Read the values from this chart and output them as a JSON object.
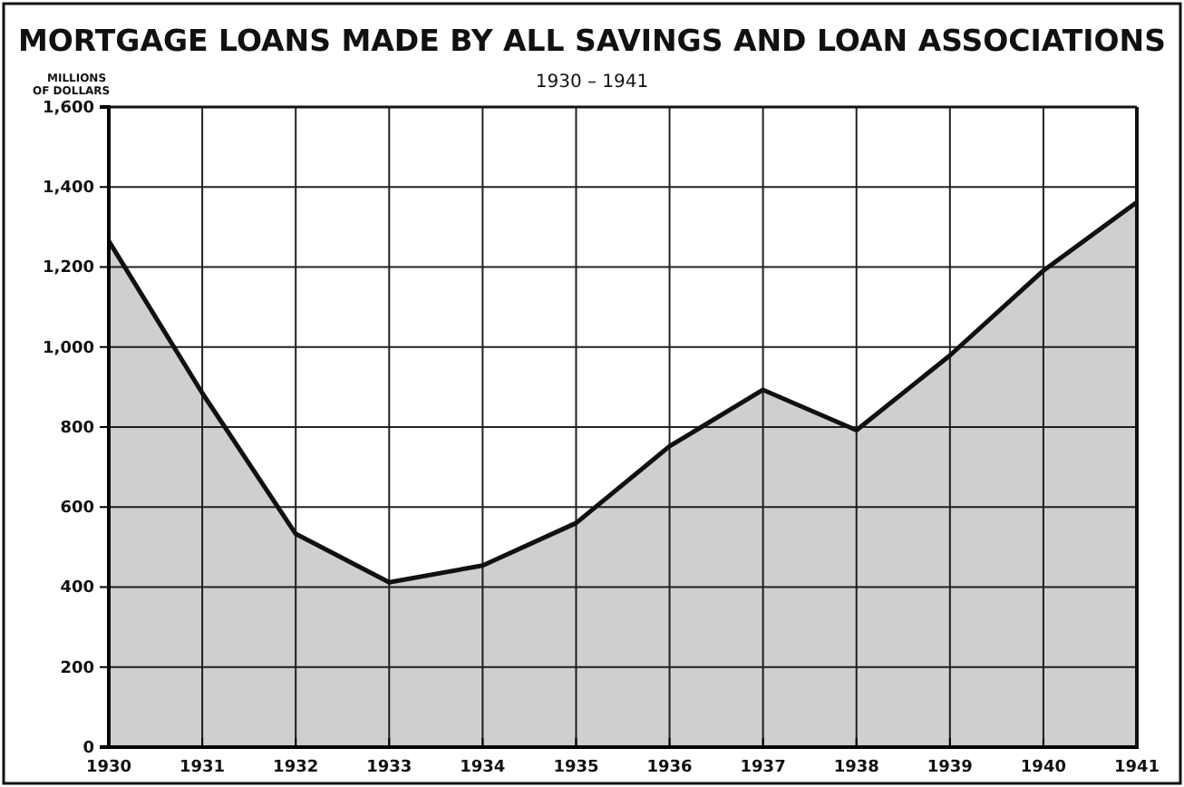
{
  "chart_data": {
    "type": "area",
    "title": "MORTGAGE LOANS MADE BY ALL SAVINGS AND LOAN ASSOCIATIONS",
    "subtitle": "1930 – 1941",
    "ylabel": "MILLIONS OF DOLLARS",
    "x": [
      1930,
      1931,
      1932,
      1933,
      1934,
      1935,
      1936,
      1937,
      1938,
      1939,
      1940,
      1941
    ],
    "series": [
      {
        "color": "#111111",
        "values": [
          1265,
          885,
          533,
          412,
          454,
          560,
          752,
          893,
          792,
          979,
          1191,
          1362
        ]
      }
    ],
    "xlim": [
      1930,
      1941
    ],
    "xticks": [
      1930,
      1931,
      1932,
      1933,
      1934,
      1935,
      1936,
      1937,
      1938,
      1939,
      1940,
      1941
    ],
    "ylim": [
      0,
      1600
    ],
    "yticks": [
      0,
      200,
      400,
      600,
      800,
      {
        "value": 1000,
        "label": "1,000"
      },
      {
        "value": 1200,
        "label": "1,200"
      },
      {
        "value": 1400,
        "label": "1,400"
      },
      {
        "value": 1600,
        "label": "1,600"
      }
    ],
    "grid": true
  }
}
